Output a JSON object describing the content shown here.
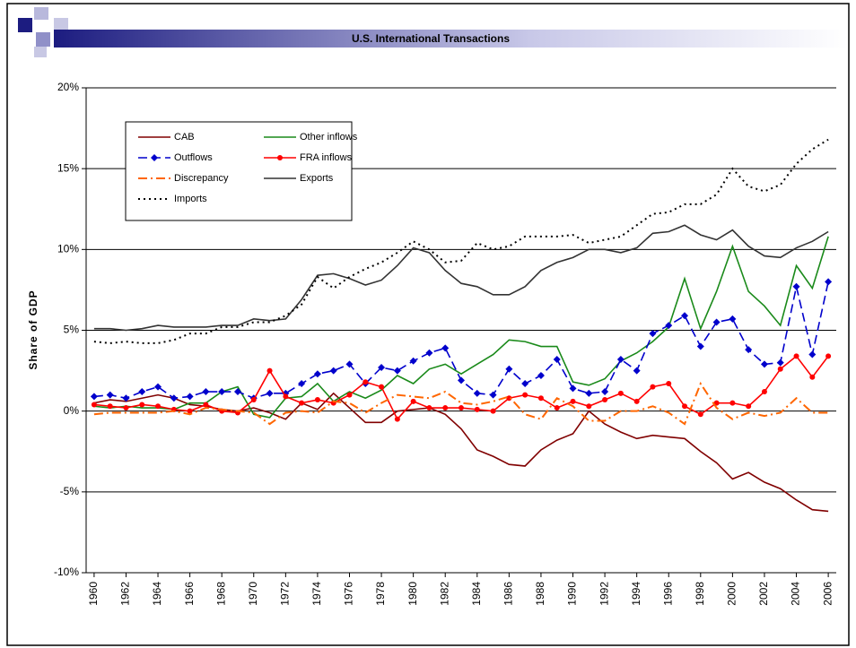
{
  "chart_data": {
    "type": "line",
    "title": "U.S. International Transactions",
    "y_label": "Share of GDP",
    "x": [
      1960,
      1961,
      1962,
      1963,
      1964,
      1965,
      1966,
      1967,
      1968,
      1969,
      1970,
      1971,
      1972,
      1973,
      1974,
      1975,
      1976,
      1977,
      1978,
      1979,
      1980,
      1981,
      1982,
      1983,
      1984,
      1985,
      1986,
      1987,
      1988,
      1989,
      1990,
      1991,
      1992,
      1993,
      1994,
      1995,
      1996,
      1997,
      1998,
      1999,
      2000,
      2001,
      2002,
      2003,
      2004,
      2005,
      2006
    ],
    "xlim": [
      1959.5,
      2006.5
    ],
    "xticks": [
      1960,
      1962,
      1964,
      1966,
      1968,
      1970,
      1972,
      1974,
      1976,
      1978,
      1980,
      1982,
      1984,
      1986,
      1988,
      1990,
      1992,
      1994,
      1996,
      1998,
      2000,
      2002,
      2004,
      2006
    ],
    "ylim": [
      -10,
      20
    ],
    "yticks": [
      {
        "value": -10,
        "label": "-10%"
      },
      {
        "value": -5,
        "label": "-5%"
      },
      {
        "value": 0,
        "label": "0%"
      },
      {
        "value": 5,
        "label": "5%"
      },
      {
        "value": 10,
        "label": "10%"
      },
      {
        "value": 15,
        "label": "15%"
      },
      {
        "value": 20,
        "label": "20%"
      }
    ],
    "grid": true,
    "legend": "upper left",
    "series": [
      {
        "name": "CAB",
        "color": "#800000",
        "line_style": "solid",
        "values": [
          0.5,
          0.7,
          0.6,
          0.8,
          1.0,
          0.8,
          0.4,
          0.3,
          0.1,
          0.0,
          0.2,
          -0.1,
          -0.5,
          0.5,
          0.1,
          1.1,
          0.2,
          -0.7,
          -0.7,
          0.0,
          0.1,
          0.2,
          -0.2,
          -1.1,
          -2.4,
          -2.8,
          -3.3,
          -3.4,
          -2.4,
          -1.8,
          -1.4,
          0.0,
          -0.8,
          -1.3,
          -1.7,
          -1.5,
          -1.6,
          -1.7,
          -2.5,
          -3.2,
          -4.2,
          -3.8,
          -4.4,
          -4.8,
          -5.5,
          -6.1,
          -6.2
        ]
      },
      {
        "name": "Other inflows",
        "color": "#1a8a1a",
        "line_style": "solid",
        "values": [
          0.3,
          0.2,
          0.3,
          0.2,
          0.2,
          0.1,
          0.5,
          0.5,
          1.2,
          1.5,
          -0.2,
          -0.4,
          0.8,
          0.9,
          1.7,
          0.6,
          1.2,
          0.8,
          1.3,
          2.2,
          1.7,
          2.6,
          2.9,
          2.3,
          2.9,
          3.5,
          4.4,
          4.3,
          4.0,
          4.0,
          1.8,
          1.6,
          2.0,
          3.1,
          3.6,
          4.3,
          5.2,
          8.2,
          5.1,
          7.4,
          10.2,
          7.4,
          6.5,
          5.3,
          9.0,
          7.6,
          10.8
        ]
      },
      {
        "name": "Outflows",
        "color": "#0000cc",
        "line_style": "dashed",
        "marker": "diamond",
        "values": [
          0.9,
          1.0,
          0.8,
          1.2,
          1.5,
          0.8,
          0.9,
          1.2,
          1.2,
          1.2,
          0.8,
          1.1,
          1.1,
          1.7,
          2.3,
          2.5,
          2.9,
          1.7,
          2.7,
          2.5,
          3.1,
          3.6,
          3.9,
          1.9,
          1.1,
          1.0,
          2.6,
          1.7,
          2.2,
          3.2,
          1.4,
          1.1,
          1.2,
          3.2,
          2.5,
          4.8,
          5.3,
          5.9,
          4.0,
          5.5,
          5.7,
          3.8,
          2.9,
          3.0,
          7.7,
          3.5,
          8.0
        ]
      },
      {
        "name": "FRA inflows",
        "color": "#ff0000",
        "line_style": "solid",
        "marker": "circle",
        "values": [
          0.4,
          0.3,
          0.2,
          0.4,
          0.3,
          0.1,
          0.0,
          0.4,
          0.0,
          -0.1,
          0.7,
          2.5,
          0.9,
          0.5,
          0.7,
          0.5,
          1.0,
          1.8,
          1.5,
          -0.5,
          0.6,
          0.2,
          0.2,
          0.2,
          0.1,
          0.0,
          0.8,
          1.0,
          0.8,
          0.2,
          0.6,
          0.3,
          0.7,
          1.1,
          0.6,
          1.5,
          1.7,
          0.3,
          -0.2,
          0.5,
          0.5,
          0.3,
          1.2,
          2.6,
          3.4,
          2.1,
          3.4
        ]
      },
      {
        "name": "Discrepancy",
        "color": "#ff6600",
        "line_style": "dashdot",
        "values": [
          -0.2,
          -0.1,
          -0.1,
          -0.1,
          -0.1,
          0.0,
          -0.2,
          0.2,
          0.1,
          0.0,
          -0.1,
          -0.8,
          -0.1,
          0.0,
          -0.1,
          0.6,
          0.5,
          -0.1,
          0.5,
          1.0,
          0.9,
          0.8,
          1.2,
          0.5,
          0.4,
          0.6,
          0.9,
          -0.2,
          -0.5,
          0.8,
          0.3,
          -0.6,
          -0.6,
          0.0,
          0.0,
          0.3,
          -0.1,
          -0.8,
          1.7,
          0.2,
          -0.5,
          -0.1,
          -0.3,
          -0.1,
          0.8,
          -0.1,
          -0.1
        ]
      },
      {
        "name": "Exports",
        "color": "#333333",
        "line_style": "solid",
        "values": [
          5.1,
          5.1,
          5.0,
          5.1,
          5.3,
          5.2,
          5.2,
          5.2,
          5.3,
          5.3,
          5.7,
          5.6,
          5.7,
          6.9,
          8.4,
          8.5,
          8.2,
          7.8,
          8.1,
          9.0,
          10.1,
          9.8,
          8.7,
          7.9,
          7.7,
          7.2,
          7.2,
          7.7,
          8.7,
          9.2,
          9.5,
          10.0,
          10.0,
          9.8,
          10.1,
          11.0,
          11.1,
          11.5,
          10.9,
          10.6,
          11.2,
          10.2,
          9.6,
          9.5,
          10.1,
          10.5,
          11.1
        ]
      },
      {
        "name": "Imports",
        "color": "#000000",
        "line_style": "dotted",
        "values": [
          4.3,
          4.2,
          4.3,
          4.2,
          4.2,
          4.4,
          4.8,
          4.8,
          5.2,
          5.2,
          5.5,
          5.5,
          5.9,
          6.6,
          8.3,
          7.6,
          8.3,
          8.8,
          9.2,
          9.8,
          10.5,
          10.0,
          9.2,
          9.3,
          10.4,
          10.0,
          10.2,
          10.8,
          10.8,
          10.8,
          10.9,
          10.4,
          10.6,
          10.8,
          11.5,
          12.2,
          12.3,
          12.8,
          12.8,
          13.4,
          15.0,
          13.9,
          13.6,
          14.0,
          15.3,
          16.2,
          16.8
        ]
      }
    ]
  }
}
